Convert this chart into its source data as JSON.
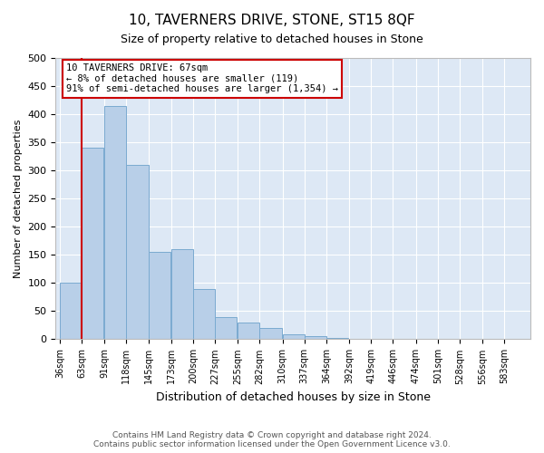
{
  "title": "10, TAVERNERS DRIVE, STONE, ST15 8QF",
  "subtitle": "Size of property relative to detached houses in Stone",
  "xlabel": "Distribution of detached houses by size in Stone",
  "ylabel": "Number of detached properties",
  "bar_color": "#b8cfe8",
  "bar_edge_color": "#7aaad0",
  "bg_color": "#dde8f5",
  "grid_color": "#ffffff",
  "annotation_box_color": "#cc0000",
  "property_line_color": "#cc0000",
  "categories": [
    "36sqm",
    "63sqm",
    "91sqm",
    "118sqm",
    "145sqm",
    "173sqm",
    "200sqm",
    "227sqm",
    "255sqm",
    "282sqm",
    "310sqm",
    "337sqm",
    "364sqm",
    "392sqm",
    "419sqm",
    "446sqm",
    "474sqm",
    "501sqm",
    "528sqm",
    "556sqm",
    "583sqm"
  ],
  "bin_left_edges": [
    36,
    63,
    91,
    118,
    145,
    173,
    200,
    227,
    255,
    282,
    310,
    337,
    364,
    392,
    419,
    446,
    474,
    501,
    528,
    556,
    583
  ],
  "bin_width": 27,
  "values": [
    100,
    340,
    415,
    310,
    155,
    160,
    90,
    40,
    30,
    20,
    8,
    5,
    3,
    0,
    0,
    0,
    1,
    0,
    1,
    0,
    1
  ],
  "ylim": [
    0,
    500
  ],
  "yticks": [
    0,
    50,
    100,
    150,
    200,
    250,
    300,
    350,
    400,
    450,
    500
  ],
  "property_line_x": 63,
  "annotation_text": "10 TAVERNERS DRIVE: 67sqm\n← 8% of detached houses are smaller (119)\n91% of semi-detached houses are larger (1,354) →",
  "footer_line1": "Contains HM Land Registry data © Crown copyright and database right 2024.",
  "footer_line2": "Contains public sector information licensed under the Open Government Licence v3.0."
}
